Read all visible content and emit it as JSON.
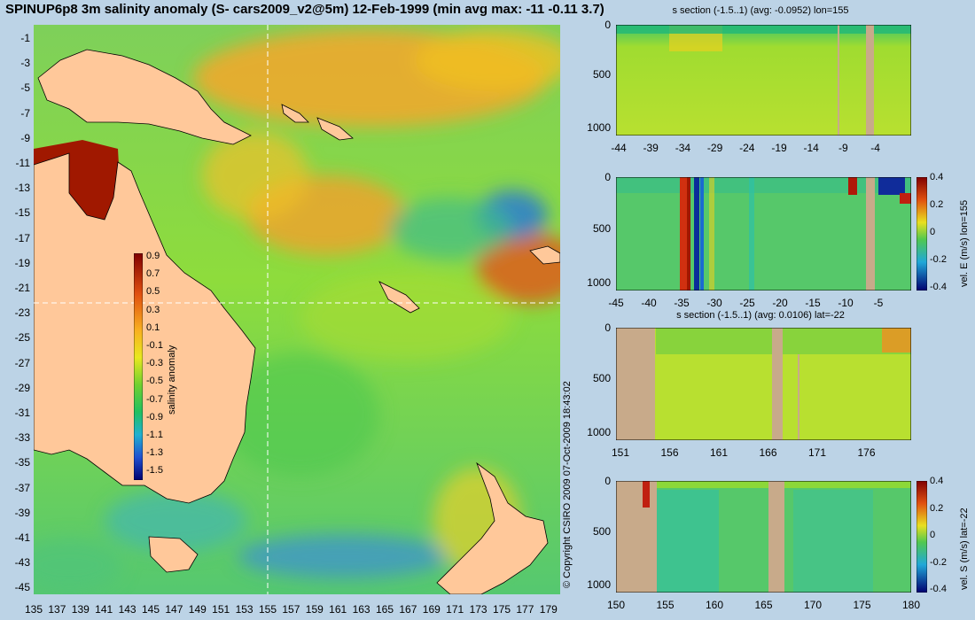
{
  "header": {
    "title": "SPINUP6p8 3m salinity anomaly (S- cars2009_v2@5m) 12-Feb-1999 (min avg max: -11 -0.11 3.7)"
  },
  "map": {
    "colorbar_label": "salinity anomaly",
    "colorbar_ticks": [
      "0.9",
      "0.7",
      "0.5",
      "0.3",
      "0.1",
      "-0.1",
      "-0.3",
      "-0.5",
      "-0.7",
      "-0.9",
      "-1.1",
      "-1.3",
      "-1.5"
    ],
    "lat_ticks": [
      "-1",
      "-3",
      "-5",
      "-7",
      "-9",
      "-11",
      "-13",
      "-15",
      "-17",
      "-19",
      "-21",
      "-23",
      "-25",
      "-27",
      "-29",
      "-31",
      "-33",
      "-35",
      "-37",
      "-39",
      "-41",
      "-43",
      "-45"
    ],
    "lon_ticks": [
      "135",
      "137",
      "139",
      "141",
      "143",
      "145",
      "147",
      "149",
      "151",
      "153",
      "155",
      "157",
      "159",
      "161",
      "163",
      "165",
      "167",
      "169",
      "171",
      "173",
      "175",
      "177",
      "179"
    ]
  },
  "copyright": "© Copyright CSIRO 2009   07-Oct-2009 18:43:02",
  "sections": [
    {
      "title": "s section (-1.5..1) (avg: -0.0952) lon=155",
      "x_ticks": [
        "-44",
        "-39",
        "-34",
        "-29",
        "-24",
        "-19",
        "-14",
        "-9",
        "-4"
      ],
      "y_ticks": [
        "0",
        "500",
        "1000"
      ]
    },
    {
      "title": "",
      "x_ticks": [
        "-45",
        "-40",
        "-35",
        "-30",
        "-25",
        "-20",
        "-15",
        "-10",
        "-5"
      ],
      "y_ticks": [
        "0",
        "500",
        "1000"
      ],
      "colorbar_label": "vel. E (m/s) lon=155",
      "colorbar_ticks": [
        "0.4",
        "0.2",
        "0",
        "-0.2",
        "-0.4"
      ]
    },
    {
      "title": "s section (-1.5..1) (avg: 0.0106) lat=-22",
      "x_ticks": [
        "151",
        "156",
        "161",
        "166",
        "171",
        "176"
      ],
      "y_ticks": [
        "0",
        "500",
        "1000"
      ]
    },
    {
      "title": "",
      "x_ticks": [
        "150",
        "155",
        "160",
        "165",
        "170",
        "175",
        "180"
      ],
      "y_ticks": [
        "0",
        "500",
        "1000"
      ],
      "colorbar_label": "vel. S (m/s) lat=-22",
      "colorbar_ticks": [
        "0.4",
        "0.2",
        "0",
        "-0.2",
        "-0.4"
      ]
    }
  ],
  "chart_data": [
    {
      "type": "heatmap",
      "title": "SPINUP6p8 3m salinity anomaly (S- cars2009_v2@5m) 12-Feb-1999 (min avg max: -11 -0.11 3.7)",
      "xlabel": "",
      "ylabel": "",
      "xlim": [
        135,
        180
      ],
      "ylim": [
        -45,
        0
      ],
      "colorbar": {
        "label": "salinity anomaly",
        "range": [
          -1.5,
          1
        ]
      },
      "stats": {
        "min": -11,
        "avg": -0.11,
        "max": 3.7
      },
      "section_lines": {
        "lon": 155,
        "lat": -22
      }
    },
    {
      "type": "heatmap",
      "title": "s section (-1.5..1) (avg: -0.0952) lon=155",
      "xlim": [
        -45,
        0
      ],
      "ylim": [
        1050,
        0
      ],
      "avg": -0.0952
    },
    {
      "type": "heatmap",
      "title": "",
      "colorbar": {
        "label": "vel. E (m/s) lon=155",
        "range": [
          -0.4,
          0.4
        ]
      },
      "xlim": [
        -45,
        0
      ],
      "ylim": [
        1050,
        0
      ]
    },
    {
      "type": "heatmap",
      "title": "s section (-1.5..1) (avg: 0.0106) lat=-22",
      "xlim": [
        150,
        180
      ],
      "ylim": [
        1050,
        0
      ],
      "avg": 0.0106
    },
    {
      "type": "heatmap",
      "title": "",
      "colorbar": {
        "label": "vel. S (m/s) lat=-22",
        "range": [
          -0.4,
          0.4
        ]
      },
      "xlim": [
        150,
        180
      ],
      "ylim": [
        1050,
        0
      ]
    }
  ]
}
